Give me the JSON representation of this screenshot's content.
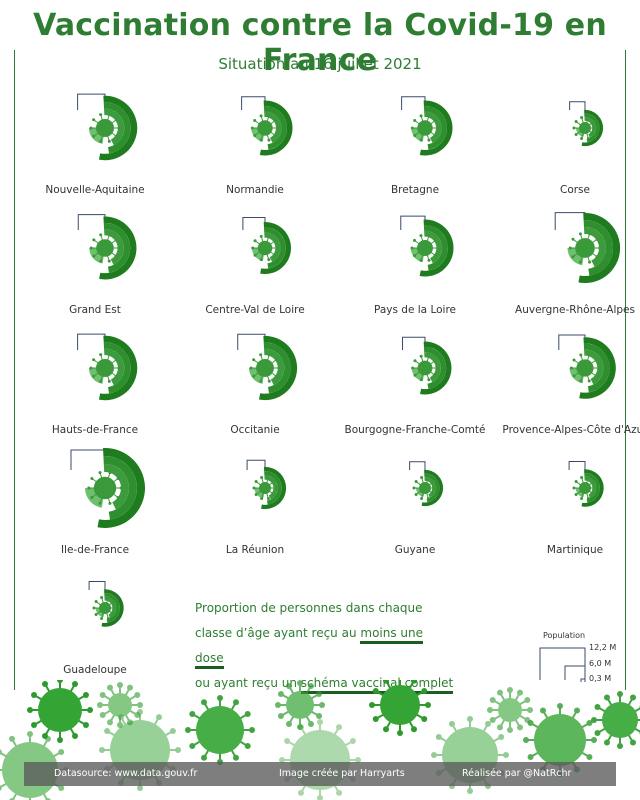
{
  "title": "Vaccination contre la Covid-19 en France",
  "subtitle": "Situation au 16 juillet 2021",
  "colors": {
    "title": "#2e7d32",
    "outer_ring": "#1e7b1e",
    "middle_ring": "#2f8f2f",
    "inner_ring": "#3d9b3d",
    "small_wedge": "#6fbf6f",
    "virus": "#3a9a3a",
    "bracket": "#3b4a6b"
  },
  "chart_data": {
    "type": "radial-bar-grid",
    "regions": [
      {
        "name": "Nouvelle-Aquitaine",
        "population_M": 6.0
      },
      {
        "name": "Normandie",
        "population_M": 3.3
      },
      {
        "name": "Bretagne",
        "population_M": 3.3
      },
      {
        "name": "Corse",
        "population_M": 0.3
      },
      {
        "name": "Grand Est",
        "population_M": 5.5
      },
      {
        "name": "Centre-Val de Loire",
        "population_M": 2.6
      },
      {
        "name": "Pays de la Loire",
        "population_M": 3.8
      },
      {
        "name": "Auvergne-Rhône-Alpes",
        "population_M": 8.0
      },
      {
        "name": "Hauts-de-France",
        "population_M": 6.0
      },
      {
        "name": "Occitanie",
        "population_M": 5.9
      },
      {
        "name": "Bourgogne-Franche-Comté",
        "population_M": 2.8
      },
      {
        "name": "Provence-Alpes-Côte d'Azur",
        "population_M": 5.1
      },
      {
        "name": "Ile-de-France",
        "population_M": 12.2
      },
      {
        "name": "La Réunion",
        "population_M": 0.9
      },
      {
        "name": "Guyane",
        "population_M": 0.3
      },
      {
        "name": "Martinique",
        "population_M": 0.4
      },
      {
        "name": "Guadeloupe",
        "population_M": 0.4
      }
    ],
    "size_legend": {
      "title": "Population",
      "values": [
        "12,2 M",
        "6,0 M",
        "0,3 M"
      ]
    }
  },
  "legend": {
    "line1": "Proportion de personnes dans chaque",
    "line2_a": "classe d’âge ayant reçu au ",
    "line2_b": "moins une dose",
    "line3_a": "ou ayant reçu un ",
    "line3_b": "schéma vaccinal complet"
  },
  "footer": {
    "source": "Datasource: www.data.gouv.fr",
    "image_credit": "Image créée par Harryarts",
    "author": "Réalisée par @NatRchr"
  }
}
